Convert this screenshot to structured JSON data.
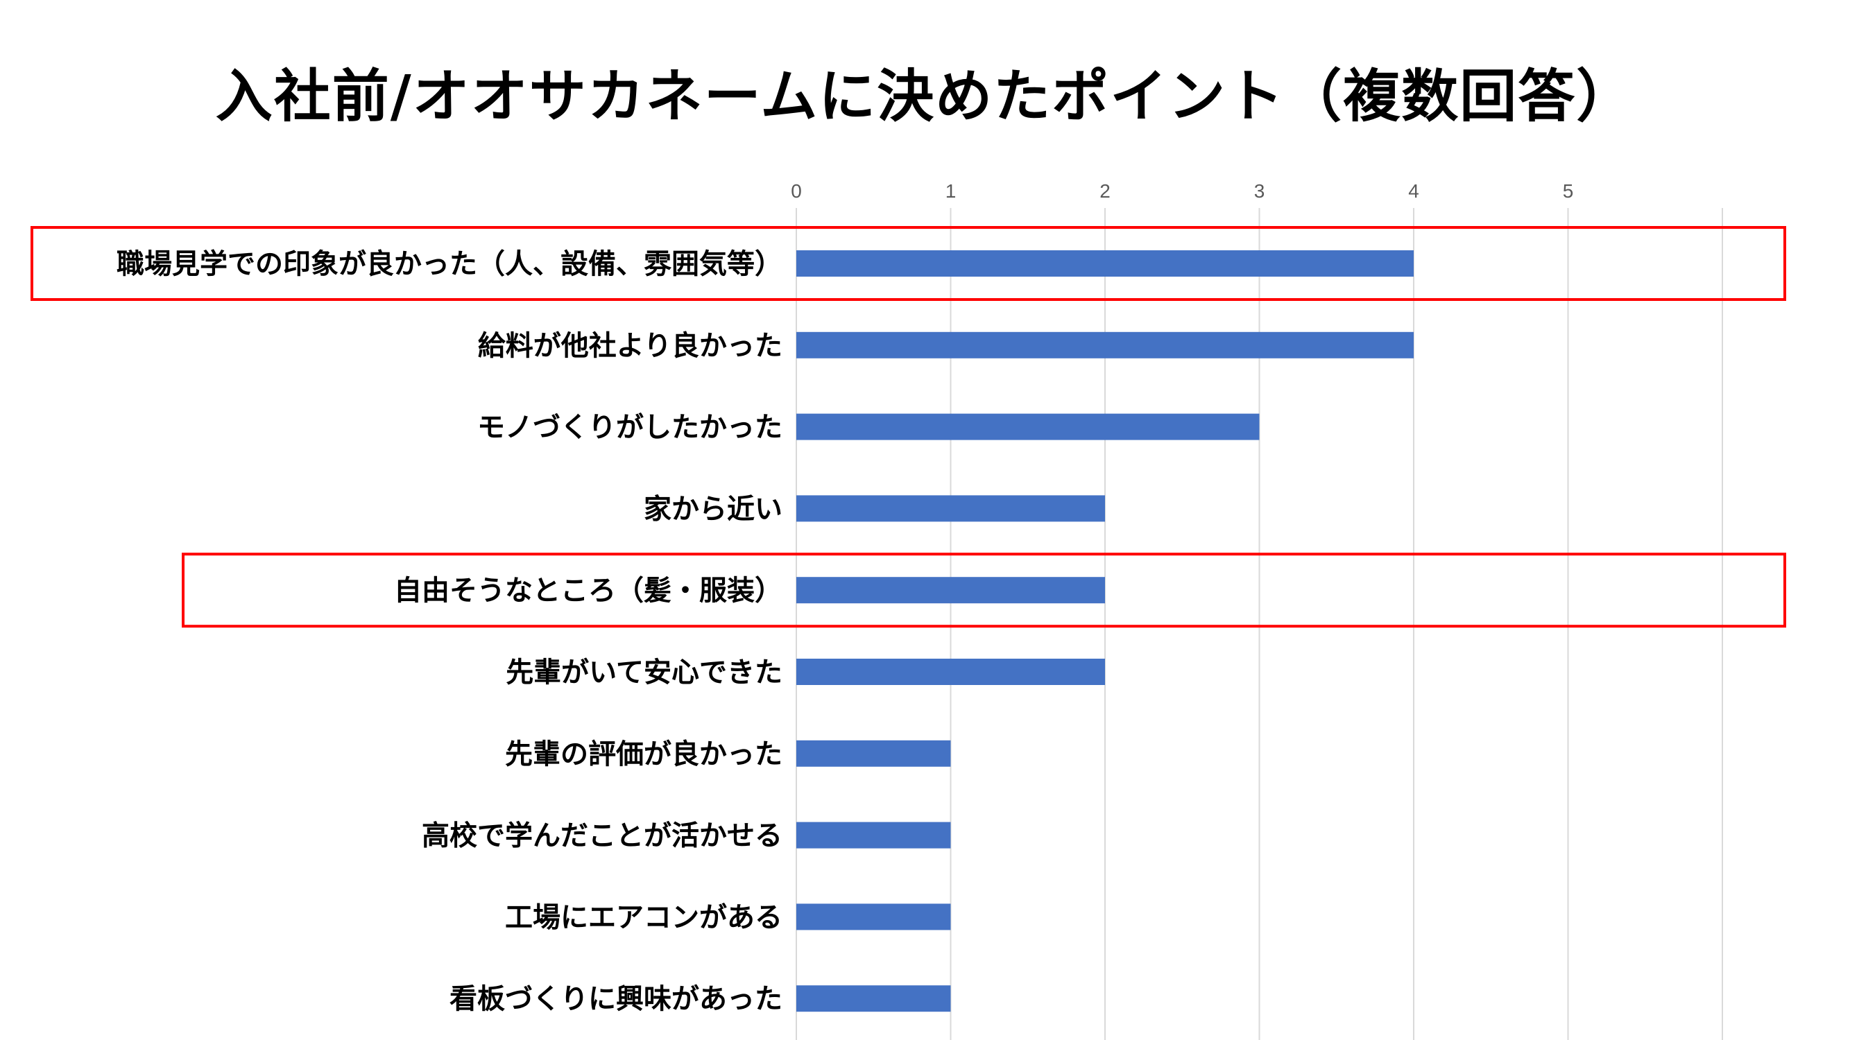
{
  "chart_data": {
    "type": "bar",
    "orientation": "horizontal",
    "title": "入社前/オオサカネームに決めたポイント（複数回答）",
    "categories": [
      "職場見学での印象が良かった（人、設備、雰囲気等）",
      "給料が他社より良かった",
      "モノづくりがしたかった",
      "家から近い",
      "自由そうなところ（髪・服装）",
      "先輩がいて安心できた",
      "先輩の評価が良かった",
      "高校で学んだことが活かせる",
      "工場にエアコンがある",
      "看板づくりに興味があった"
    ],
    "values": [
      4,
      4,
      3,
      2,
      2,
      2,
      1,
      1,
      1,
      1
    ],
    "x_ticks": [
      "0",
      "1",
      "2",
      "3",
      "4",
      "5"
    ],
    "xlim": [
      0,
      6
    ],
    "axis_position": "top",
    "grid": true,
    "legend": "none",
    "highlighted_categories": [
      0,
      4
    ],
    "colors": {
      "bar": "#4472C4",
      "grid": "#D9D9D9",
      "highlight_box": "#FF0000",
      "tick_text": "#595959"
    }
  }
}
